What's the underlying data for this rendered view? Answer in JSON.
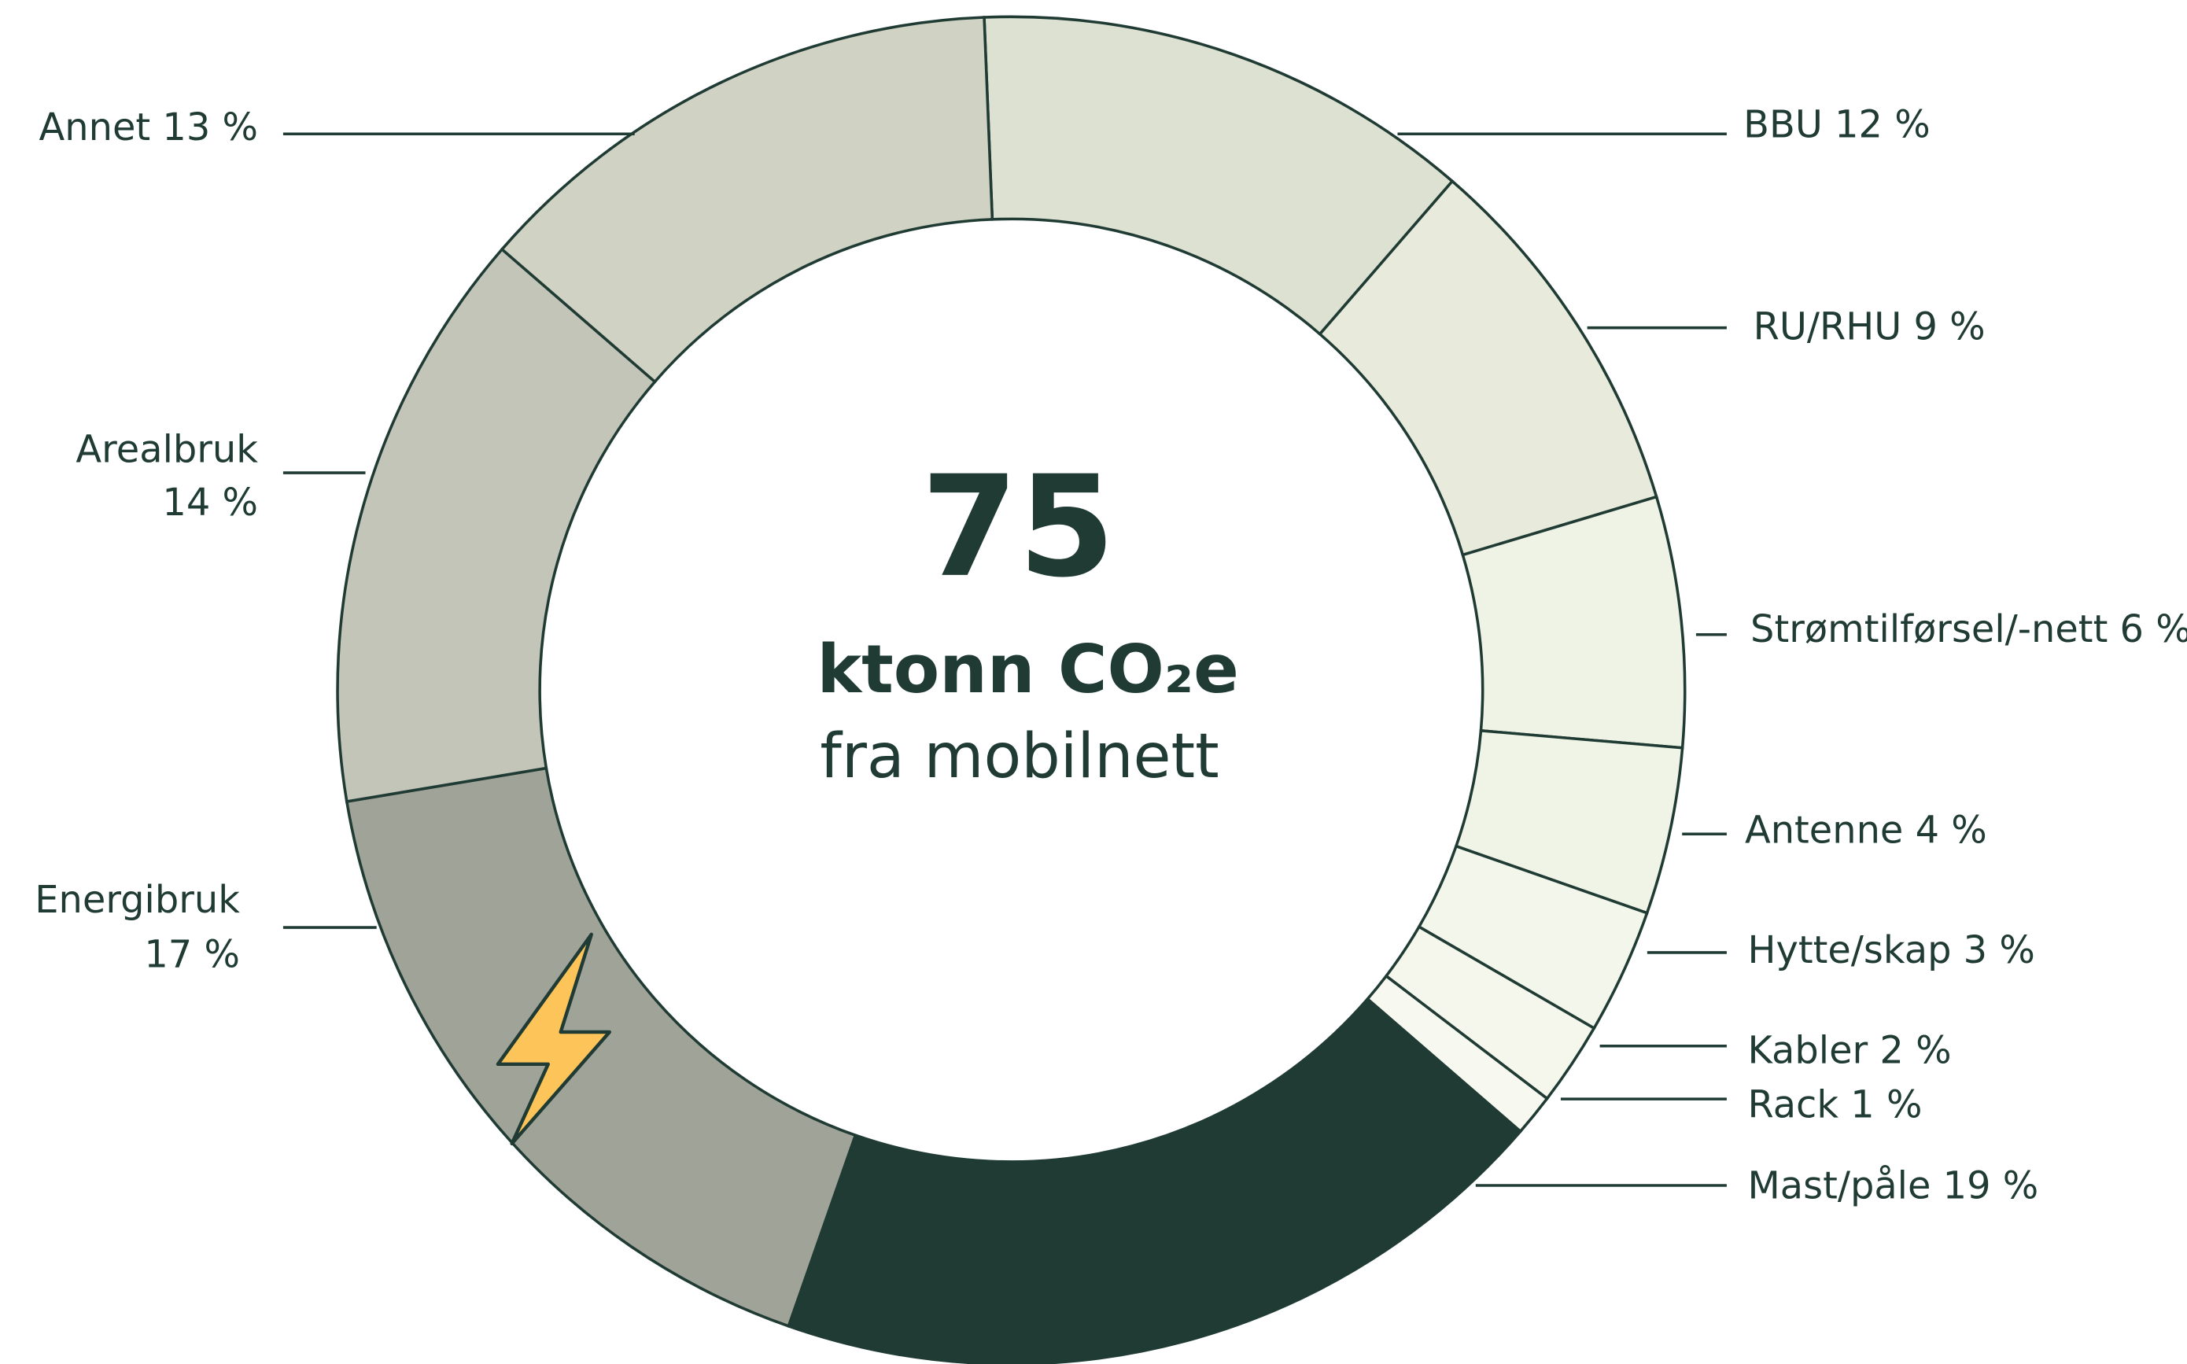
{
  "chart_data": {
    "type": "donut",
    "total": 75,
    "unit": "ktonn CO₂e",
    "subtitle": "fra mobilnett",
    "categories": [
      "BBU",
      "RU/RHU",
      "Strømtilførsel/-nett",
      "Antenne",
      "Hytte/skap",
      "Kabler",
      "Rack",
      "Mast/påle",
      "Energibruk",
      "Arealbruk",
      "Annet"
    ],
    "values": [
      12,
      9,
      6,
      4,
      3,
      2,
      1,
      19,
      17,
      14,
      13
    ],
    "value_labels": [
      "12 %",
      "9 %",
      "6 %",
      "4 %",
      "3 %",
      "2 %",
      "1 %",
      "19 %",
      "17 %",
      "14 %",
      "13 %"
    ],
    "colors": [
      "#dde1d1",
      "#e8eadb",
      "#eff3e6",
      "#f0f4e6",
      "#f3f6eb",
      "#f5f7ed",
      "#f7f9f0",
      "#1f3b34",
      "#a0a398",
      "#c3c5b8",
      "#d0d2c3"
    ]
  }
}
